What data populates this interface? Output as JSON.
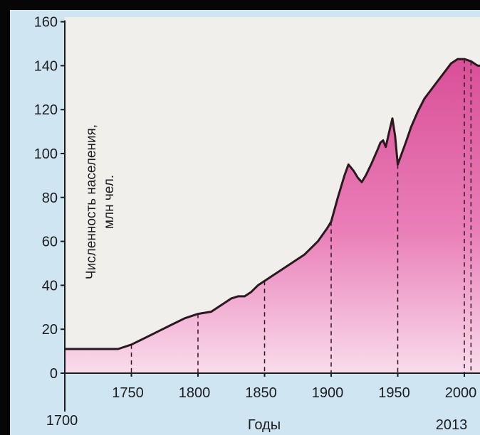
{
  "chart_data": {
    "type": "area",
    "title": "",
    "xlabel": "Годы",
    "ylabel_line1": "Численность населения,",
    "ylabel_line2": "млн чел.",
    "xlim": [
      1700,
      2017
    ],
    "ylim": [
      0,
      160
    ],
    "y_ticks": [
      0,
      20,
      40,
      60,
      80,
      100,
      120,
      140,
      160
    ],
    "x_ticks": [
      1750,
      1800,
      1850,
      1900,
      1950,
      2000
    ],
    "x_start_label": "1700",
    "x_end_label": "2013",
    "x_end_value": 2013,
    "grid": false,
    "fill_color": "#e66aa8",
    "line_color": "#2a1a1e",
    "series": [
      {
        "values": [
          [
            1700,
            11
          ],
          [
            1720,
            11
          ],
          [
            1740,
            11
          ],
          [
            1750,
            13
          ],
          [
            1760,
            16
          ],
          [
            1770,
            19
          ],
          [
            1780,
            22
          ],
          [
            1790,
            25
          ],
          [
            1800,
            27
          ],
          [
            1810,
            28
          ],
          [
            1815,
            30
          ],
          [
            1820,
            32
          ],
          [
            1825,
            34
          ],
          [
            1830,
            35
          ],
          [
            1835,
            35
          ],
          [
            1840,
            37
          ],
          [
            1845,
            40
          ],
          [
            1850,
            42
          ],
          [
            1860,
            46
          ],
          [
            1870,
            50
          ],
          [
            1880,
            54
          ],
          [
            1890,
            60
          ],
          [
            1897,
            66
          ],
          [
            1900,
            69
          ],
          [
            1905,
            80
          ],
          [
            1910,
            90
          ],
          [
            1913,
            95
          ],
          [
            1917,
            92
          ],
          [
            1920,
            89
          ],
          [
            1923,
            87
          ],
          [
            1926,
            90
          ],
          [
            1930,
            95
          ],
          [
            1935,
            102
          ],
          [
            1937,
            105
          ],
          [
            1939,
            106
          ],
          [
            1941,
            103
          ],
          [
            1944,
            111
          ],
          [
            1946,
            116
          ],
          [
            1948,
            108
          ],
          [
            1950,
            95
          ],
          [
            1953,
            100
          ],
          [
            1956,
            105
          ],
          [
            1960,
            112
          ],
          [
            1965,
            119
          ],
          [
            1970,
            125
          ],
          [
            1975,
            129
          ],
          [
            1980,
            133
          ],
          [
            1985,
            137
          ],
          [
            1990,
            141
          ],
          [
            1995,
            143
          ],
          [
            2000,
            143
          ],
          [
            2005,
            142
          ],
          [
            2010,
            140
          ],
          [
            2013,
            140
          ]
        ]
      }
    ],
    "dashed_year_markers": [
      1750,
      1800,
      1850,
      1900,
      1950,
      2000,
      2005
    ]
  }
}
